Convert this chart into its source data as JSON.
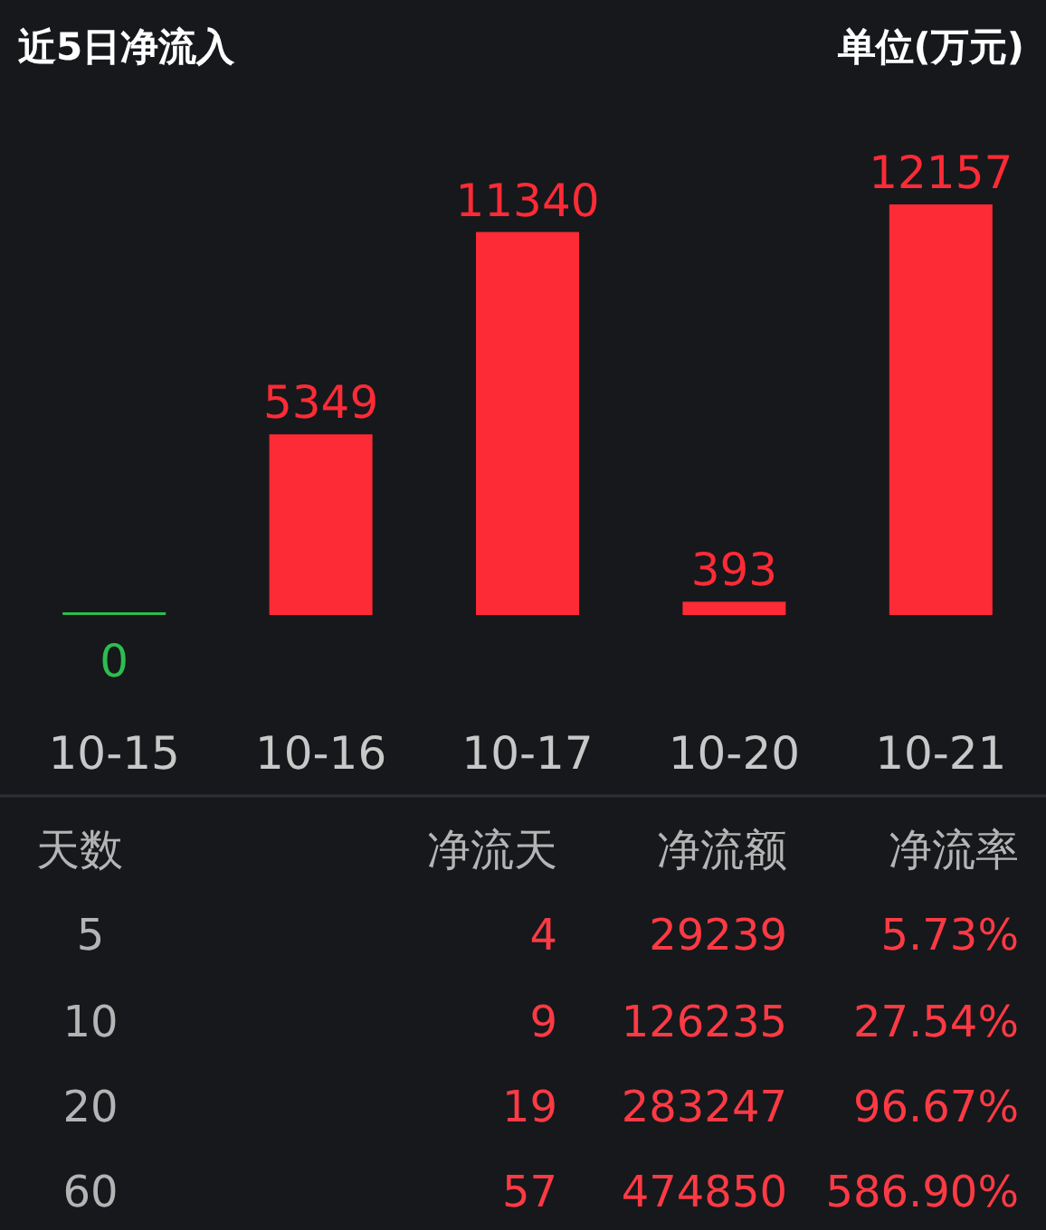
{
  "chart_data": [
    {
      "type": "bar",
      "title": "近5日净流入",
      "subtitle": "单位(万元)",
      "categories": [
        "10-15",
        "10-16",
        "10-17",
        "10-20",
        "10-21"
      ],
      "values": [
        0,
        5349,
        11340,
        393,
        12157
      ],
      "colors": [
        "#2dbd4e",
        "#fc2b36",
        "#fc2b36",
        "#fc2b36",
        "#fc2b36"
      ],
      "data_labels": true
    },
    {
      "type": "other",
      "annotations": [
        "天数",
        "净流天",
        "净流额",
        "净流率",
        "5",
        "4",
        "29239",
        "5.73%",
        "10",
        "9",
        "126235",
        "27.54%",
        "20",
        "19",
        "283247",
        "96.67%",
        "60",
        "57",
        "474850",
        "586.90%"
      ]
    }
  ]
}
